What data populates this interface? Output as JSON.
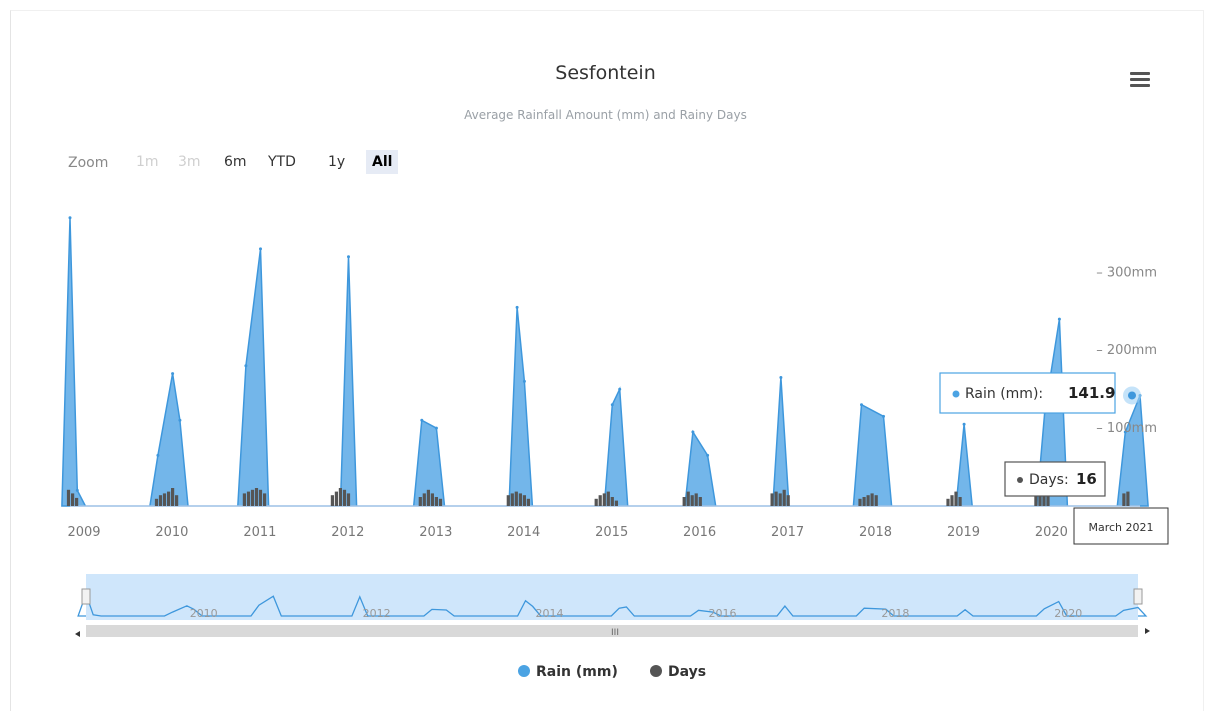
{
  "chart_data": {
    "type": "area",
    "title": "Sesfontein",
    "subtitle": "Average Rainfall Amount (mm) and Rainy Days",
    "x_start": "2009-01",
    "x_end": "2021-03",
    "x_ticks": [
      "2009",
      "2010",
      "2011",
      "2012",
      "2013",
      "2014",
      "2015",
      "2016",
      "2017",
      "2018",
      "2019",
      "2020"
    ],
    "y_ticks": [
      "300mm",
      "200mm",
      "100mm"
    ],
    "y_tick_values": [
      300,
      200,
      100
    ],
    "ylim": [
      0,
      380
    ],
    "days_ylim": [
      0,
      100
    ],
    "legend_position": "bottom-center",
    "series": [
      {
        "name": "Rain (mm)",
        "color": "#4ba3e3",
        "peaks": [
          {
            "date": "2009-01",
            "value": 370
          },
          {
            "date": "2009-02",
            "value": 20
          },
          {
            "date": "2010-01",
            "value": 65
          },
          {
            "date": "2010-03",
            "value": 170
          },
          {
            "date": "2010-04",
            "value": 110
          },
          {
            "date": "2011-01",
            "value": 180
          },
          {
            "date": "2011-03",
            "value": 330
          },
          {
            "date": "2012-03",
            "value": 320
          },
          {
            "date": "2013-01",
            "value": 110
          },
          {
            "date": "2013-03",
            "value": 100
          },
          {
            "date": "2014-02",
            "value": 255
          },
          {
            "date": "2014-03",
            "value": 160
          },
          {
            "date": "2015-03",
            "value": 130
          },
          {
            "date": "2015-04",
            "value": 150
          },
          {
            "date": "2016-02",
            "value": 95
          },
          {
            "date": "2016-04",
            "value": 65
          },
          {
            "date": "2017-02",
            "value": 165
          },
          {
            "date": "2018-01",
            "value": 130
          },
          {
            "date": "2018-04",
            "value": 115
          },
          {
            "date": "2019-03",
            "value": 105
          },
          {
            "date": "2020-02",
            "value": 120
          },
          {
            "date": "2020-04",
            "value": 240
          },
          {
            "date": "2021-01",
            "value": 95
          },
          {
            "date": "2021-03",
            "value": 141.9
          }
        ]
      },
      {
        "name": "Days",
        "color": "#555555",
        "values_by_season": [
          {
            "year": "2009",
            "days": [
              18,
              14,
              9
            ]
          },
          {
            "year": "2010",
            "days": [
              8,
              12,
              14,
              16,
              20,
              12
            ]
          },
          {
            "year": "2011",
            "days": [
              14,
              16,
              18,
              20,
              18,
              14
            ]
          },
          {
            "year": "2012",
            "days": [
              12,
              16,
              20,
              18,
              14
            ]
          },
          {
            "year": "2013",
            "days": [
              10,
              14,
              18,
              14,
              10,
              8
            ]
          },
          {
            "year": "2014",
            "days": [
              12,
              14,
              16,
              14,
              12,
              8
            ]
          },
          {
            "year": "2015",
            "days": [
              8,
              12,
              14,
              16,
              10,
              6
            ]
          },
          {
            "year": "2016",
            "days": [
              10,
              16,
              12,
              14,
              10
            ]
          },
          {
            "year": "2017",
            "days": [
              14,
              16,
              14,
              18,
              12
            ]
          },
          {
            "year": "2018",
            "days": [
              8,
              10,
              12,
              14,
              12
            ]
          },
          {
            "year": "2019",
            "days": [
              8,
              12,
              16,
              10
            ]
          },
          {
            "year": "2020",
            "days": [
              12,
              14,
              16,
              12
            ]
          },
          {
            "year": "2021",
            "days": [
              14,
              16
            ]
          }
        ]
      }
    ],
    "tooltip": {
      "rain_label": "Rain (mm):",
      "rain_value": "141.9",
      "days_label": "Days:",
      "days_value": "16",
      "date_label": "March 2021"
    }
  },
  "toolbar": {
    "zoom_label": "Zoom",
    "buttons": [
      "1m",
      "3m",
      "6m",
      "YTD",
      "1y",
      "All"
    ],
    "active": "All"
  },
  "navigator": {
    "ticks": [
      "2010",
      "2012",
      "2014",
      "2016",
      "2018",
      "2020"
    ],
    "handle_label": "III"
  },
  "legend": {
    "items": [
      {
        "label": "Rain (mm)",
        "color": "#4ba3e3"
      },
      {
        "label": "Days",
        "color": "#555555"
      }
    ]
  }
}
